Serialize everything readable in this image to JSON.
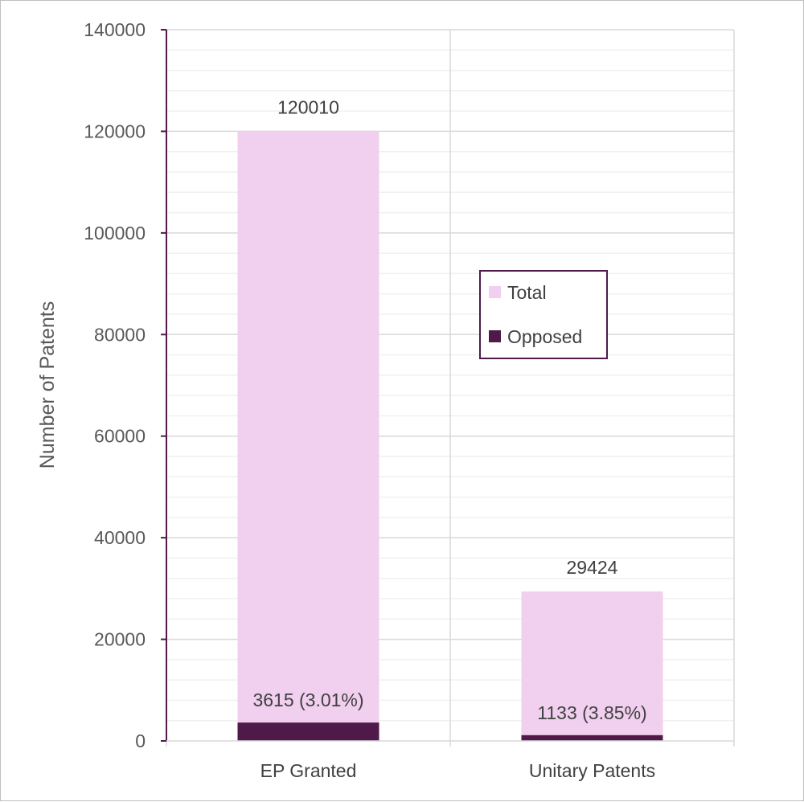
{
  "chart_data": {
    "type": "bar",
    "stacked": false,
    "categories": [
      "EP Granted",
      "Unitary Patents"
    ],
    "series": [
      {
        "name": "Total",
        "values": [
          120010,
          29424
        ],
        "color": "#f1cfee"
      },
      {
        "name": "Opposed",
        "values": [
          3615,
          1133
        ],
        "color": "#4f1a4a"
      }
    ],
    "total_labels": [
      "120010",
      "29424"
    ],
    "opposed_labels": [
      "3615 (3.01%)",
      "1133 (3.85%)"
    ],
    "ylabel": "Number  of Patents",
    "xlabel": "",
    "ylim": [
      0,
      140000
    ],
    "ytick_step": 20000,
    "minor_grid_step": 4000,
    "grid": true,
    "legend_position": "right",
    "colors": {
      "axis": "#4f1a4a",
      "grid": "#d9d9d9",
      "minor_grid": "#f0f0f0"
    }
  }
}
